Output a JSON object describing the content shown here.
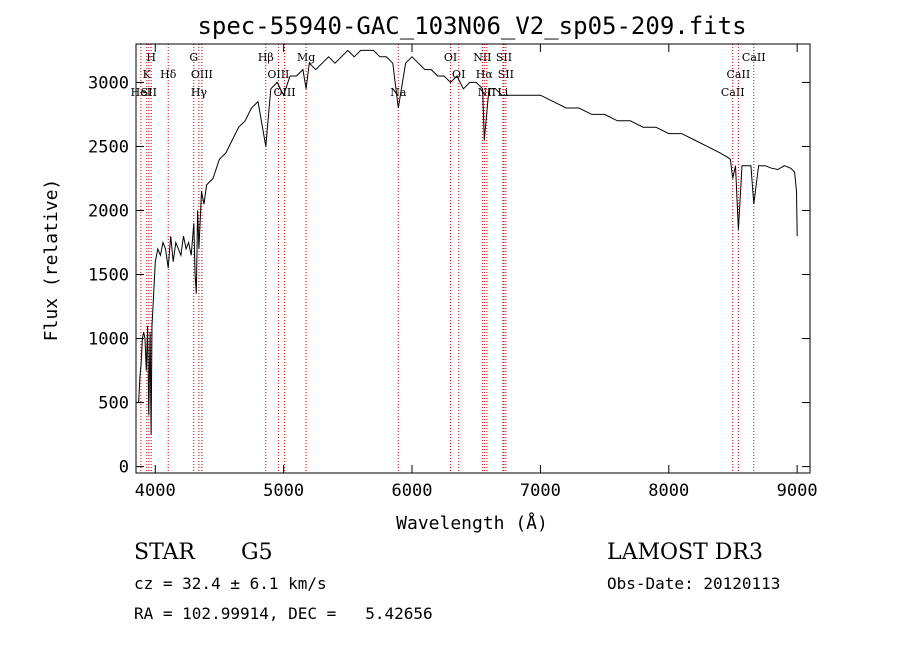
{
  "chart_data": {
    "type": "line",
    "title": "spec-55940-GAC_103N06_V2_sp05-209.fits",
    "xlabel": "Wavelength (Å)",
    "ylabel": "Flux (relative)",
    "xlim": [
      3850,
      9100
    ],
    "ylim": [
      -50,
      3300
    ],
    "x_ticks": [
      4000,
      5000,
      6000,
      7000,
      8000,
      9000
    ],
    "y_ticks": [
      0,
      500,
      1000,
      1500,
      2000,
      2500,
      3000
    ],
    "series": [
      {
        "name": "flux",
        "x": [
          3870,
          3880,
          3890,
          3900,
          3910,
          3920,
          3930,
          3940,
          3950,
          3960,
          3968,
          3975,
          3990,
          4000,
          4020,
          4040,
          4060,
          4080,
          4101,
          4120,
          4140,
          4160,
          4180,
          4200,
          4220,
          4240,
          4260,
          4280,
          4300,
          4310,
          4320,
          4330,
          4340,
          4360,
          4380,
          4400,
          4450,
          4500,
          4550,
          4600,
          4650,
          4700,
          4750,
          4800,
          4861,
          4900,
          4950,
          5000,
          5050,
          5100,
          5150,
          5175,
          5200,
          5250,
          5300,
          5350,
          5400,
          5450,
          5500,
          5550,
          5600,
          5650,
          5700,
          5750,
          5800,
          5850,
          5893,
          5950,
          6000,
          6050,
          6100,
          6150,
          6200,
          6250,
          6300,
          6350,
          6400,
          6450,
          6500,
          6550,
          6563,
          6600,
          6650,
          6700,
          6750,
          6800,
          6900,
          7000,
          7100,
          7200,
          7300,
          7400,
          7500,
          7600,
          7700,
          7800,
          7900,
          8000,
          8100,
          8200,
          8300,
          8400,
          8450,
          8480,
          8498,
          8520,
          8542,
          8570,
          8600,
          8640,
          8662,
          8700,
          8750,
          8800,
          8850,
          8900,
          8950,
          8980,
          8995,
          9000
        ],
        "y": [
          500,
          700,
          800,
          1000,
          1050,
          1000,
          750,
          1100,
          400,
          1050,
          250,
          1100,
          1400,
          1600,
          1700,
          1650,
          1750,
          1700,
          1550,
          1800,
          1600,
          1750,
          1700,
          1650,
          1800,
          1700,
          1750,
          1650,
          1900,
          1500,
          1350,
          2000,
          1700,
          2150,
          2050,
          2200,
          2250,
          2400,
          2450,
          2550,
          2650,
          2700,
          2800,
          2850,
          2500,
          2950,
          3000,
          2900,
          3050,
          3050,
          3100,
          2950,
          3150,
          3100,
          3150,
          3200,
          3150,
          3200,
          3250,
          3200,
          3250,
          3250,
          3250,
          3200,
          3200,
          3150,
          2800,
          3150,
          3200,
          3150,
          3100,
          3100,
          3050,
          3050,
          3000,
          3050,
          2950,
          3000,
          3000,
          2950,
          2550,
          2950,
          2950,
          2900,
          2900,
          2900,
          2900,
          2900,
          2850,
          2800,
          2800,
          2750,
          2750,
          2700,
          2700,
          2650,
          2650,
          2600,
          2600,
          2550,
          2500,
          2450,
          2420,
          2400,
          2250,
          2350,
          1850,
          2350,
          2350,
          2350,
          2050,
          2350,
          2350,
          2330,
          2320,
          2350,
          2330,
          2300,
          2150,
          1800
        ]
      }
    ],
    "lines": [
      {
        "label": "K",
        "x": 3934,
        "row": 2
      },
      {
        "label": "H",
        "x": 3968,
        "row": 1
      },
      {
        "label": "HeI",
        "x": 3888,
        "row": 3
      },
      {
        "label": "SII",
        "x": 3950,
        "row": 3
      },
      {
        "label": "Hδ",
        "x": 4101,
        "row": 2
      },
      {
        "label": "G",
        "x": 4300,
        "row": 1
      },
      {
        "label": "OIII",
        "x": 4363,
        "row": 2
      },
      {
        "label": "Hγ",
        "x": 4340,
        "row": 3
      },
      {
        "label": "Hβ",
        "x": 4861,
        "row": 1
      },
      {
        "label": "OIII",
        "x": 4959,
        "row": 2
      },
      {
        "label": "OIII",
        "x": 5007,
        "row": 3
      },
      {
        "label": "Mg",
        "x": 5175,
        "row": 1
      },
      {
        "label": "Na",
        "x": 5893,
        "row": 3
      },
      {
        "label": "OI",
        "x": 6300,
        "row": 1
      },
      {
        "label": "OI",
        "x": 6364,
        "row": 2
      },
      {
        "label": "NII",
        "x": 6548,
        "row": 1
      },
      {
        "label": "Hα",
        "x": 6563,
        "row": 2
      },
      {
        "label": "NII",
        "x": 6583,
        "row": 3
      },
      {
        "label": "SII",
        "x": 6716,
        "row": 1
      },
      {
        "label": "SII",
        "x": 6731,
        "row": 2
      },
      {
        "label": "Li",
        "x": 6708,
        "row": 3
      },
      {
        "label": "CaII",
        "x": 8498,
        "row": 3
      },
      {
        "label": "CaII",
        "x": 8542,
        "row": 2
      },
      {
        "label": "CaII",
        "x": 8662,
        "row": 1
      }
    ],
    "colors": {
      "spectrum": "#000000",
      "line_markers": "#cc0000",
      "axes": "#000000"
    }
  },
  "info": {
    "class": "STAR",
    "subclass": "G5",
    "survey": "LAMOST DR3",
    "cz": "cz = 32.4 ± 6.1 km/s",
    "obs_date": "Obs-Date: 20120113",
    "coords": "RA = 102.99914, DEC =   5.42656"
  }
}
